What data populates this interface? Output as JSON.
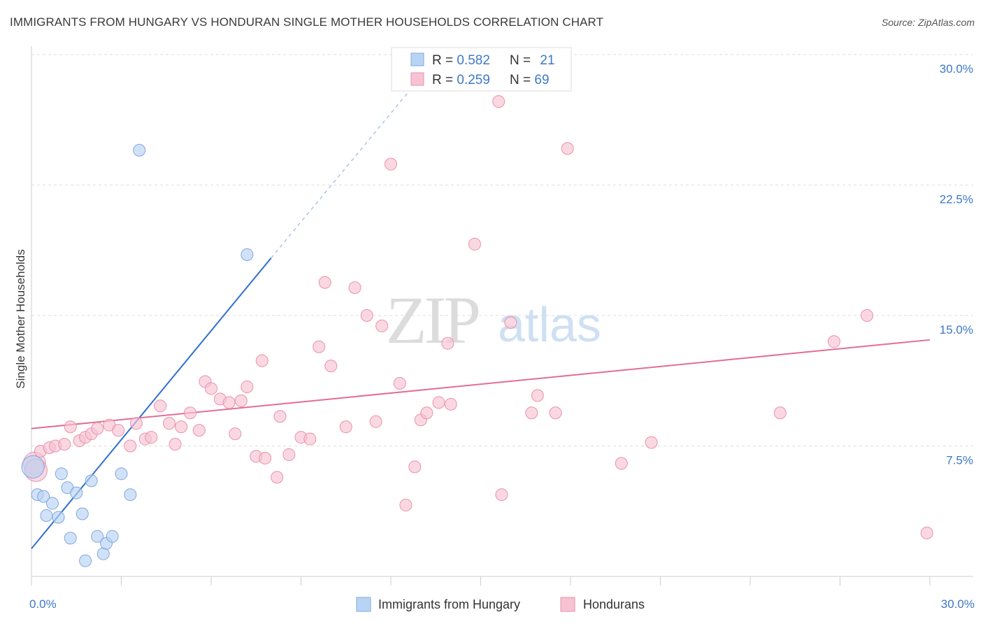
{
  "title": "IMMIGRANTS FROM HUNGARY VS HONDURAN SINGLE MOTHER HOUSEHOLDS CORRELATION CHART",
  "source": "Source: ZipAtlas.com",
  "watermark": {
    "zip": "ZIP",
    "atlas": "atlas"
  },
  "colors": {
    "blue_fill": "#b9d3f5",
    "blue_stroke": "#7fa8e0",
    "blue_line": "#2f6fd0",
    "pink_fill": "#f7c3d3",
    "pink_stroke": "#e991ae",
    "pink_line": "#e36d96",
    "accent_text": "#3d78c8",
    "grid": "#dddddd"
  },
  "chart_data": {
    "type": "scatter",
    "title": "IMMIGRANTS FROM HUNGARY VS HONDURAN SINGLE MOTHER HOUSEHOLDS CORRELATION CHART",
    "xlabel": "",
    "ylabel": "Single Mother Households",
    "xlim": [
      0,
      30
    ],
    "ylim": [
      0,
      30
    ],
    "x_tick_labels": [
      "0.0%",
      "30.0%"
    ],
    "y_ticks": [
      7.5,
      15.0,
      22.5,
      30.0
    ],
    "y_tick_labels": [
      "7.5%",
      "15.0%",
      "22.5%",
      "30.0%"
    ],
    "grid": "horizontal dashed",
    "legend_top": [
      {
        "r_label": "R = ",
        "r_value": "0.582",
        "n_label": "N = ",
        "n_value": "21"
      },
      {
        "r_label": "R = ",
        "r_value": "0.259",
        "n_label": "N = ",
        "n_value": "69"
      }
    ],
    "legend_bottom": [
      "Immigrants from Hungary",
      "Hondurans"
    ],
    "series": [
      {
        "name": "Immigrants from Hungary",
        "points": [
          [
            0.05,
            6.3
          ],
          [
            0.2,
            4.7
          ],
          [
            0.4,
            4.6
          ],
          [
            0.5,
            3.5
          ],
          [
            0.7,
            4.2
          ],
          [
            0.9,
            3.4
          ],
          [
            1.0,
            5.9
          ],
          [
            1.2,
            5.1
          ],
          [
            1.3,
            2.2
          ],
          [
            1.5,
            4.8
          ],
          [
            1.7,
            3.6
          ],
          [
            1.8,
            0.9
          ],
          [
            2.0,
            5.5
          ],
          [
            2.2,
            2.3
          ],
          [
            2.4,
            1.3
          ],
          [
            2.5,
            1.9
          ],
          [
            2.7,
            2.3
          ],
          [
            3.0,
            5.9
          ],
          [
            3.3,
            4.7
          ],
          [
            3.6,
            24.5
          ],
          [
            7.2,
            18.5
          ]
        ],
        "trend": {
          "x": [
            0,
            8.0
          ],
          "y": [
            1.6,
            18.3
          ]
        },
        "trend_ext": {
          "x": [
            8.0,
            12.9
          ],
          "y": [
            18.3,
            28.5
          ]
        }
      },
      {
        "name": "Hondurans",
        "points": [
          [
            0.1,
            6.5
          ],
          [
            0.3,
            7.2
          ],
          [
            0.6,
            7.4
          ],
          [
            0.8,
            7.5
          ],
          [
            1.1,
            7.6
          ],
          [
            1.3,
            8.6
          ],
          [
            1.6,
            7.8
          ],
          [
            1.8,
            8.0
          ],
          [
            2.0,
            8.2
          ],
          [
            2.2,
            8.5
          ],
          [
            2.6,
            8.7
          ],
          [
            2.9,
            8.4
          ],
          [
            3.3,
            7.5
          ],
          [
            3.5,
            8.8
          ],
          [
            3.8,
            7.9
          ],
          [
            4.0,
            8.0
          ],
          [
            4.3,
            9.8
          ],
          [
            4.6,
            8.8
          ],
          [
            4.8,
            7.6
          ],
          [
            5.0,
            8.6
          ],
          [
            5.3,
            9.4
          ],
          [
            5.6,
            8.4
          ],
          [
            5.8,
            11.2
          ],
          [
            6.0,
            10.8
          ],
          [
            6.3,
            10.2
          ],
          [
            6.6,
            10.0
          ],
          [
            6.8,
            8.2
          ],
          [
            7.0,
            10.1
          ],
          [
            7.2,
            10.9
          ],
          [
            7.5,
            6.9
          ],
          [
            7.7,
            12.4
          ],
          [
            7.8,
            6.8
          ],
          [
            8.2,
            5.7
          ],
          [
            8.3,
            9.2
          ],
          [
            8.6,
            7.0
          ],
          [
            9.0,
            8.0
          ],
          [
            9.3,
            7.9
          ],
          [
            9.6,
            13.2
          ],
          [
            9.8,
            16.9
          ],
          [
            10.0,
            12.1
          ],
          [
            10.5,
            8.6
          ],
          [
            10.8,
            16.6
          ],
          [
            11.2,
            15.0
          ],
          [
            11.5,
            8.9
          ],
          [
            11.7,
            14.4
          ],
          [
            12.0,
            23.7
          ],
          [
            12.3,
            11.1
          ],
          [
            12.5,
            4.1
          ],
          [
            12.8,
            6.3
          ],
          [
            13.0,
            9.0
          ],
          [
            13.2,
            9.4
          ],
          [
            13.6,
            10.0
          ],
          [
            13.9,
            13.4
          ],
          [
            14.0,
            9.9
          ],
          [
            14.8,
            19.1
          ],
          [
            15.6,
            27.3
          ],
          [
            15.7,
            4.7
          ],
          [
            16.0,
            14.6
          ],
          [
            16.7,
            9.4
          ],
          [
            16.9,
            10.4
          ],
          [
            17.5,
            9.4
          ],
          [
            17.9,
            24.6
          ],
          [
            19.7,
            6.5
          ],
          [
            20.7,
            7.7
          ],
          [
            25.0,
            9.4
          ],
          [
            26.8,
            13.5
          ],
          [
            27.9,
            15.0
          ],
          [
            29.9,
            2.5
          ],
          [
            0.15,
            6.1
          ]
        ],
        "trend": {
          "x": [
            0,
            30.0
          ],
          "y": [
            8.5,
            13.6
          ]
        }
      }
    ]
  }
}
